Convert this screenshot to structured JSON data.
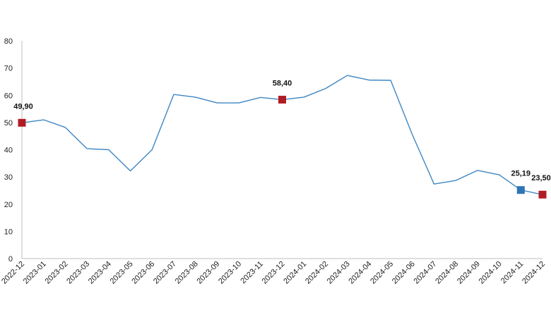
{
  "chart_data": {
    "type": "line",
    "title": "",
    "xlabel": "",
    "ylabel": "",
    "ylim": [
      0,
      80
    ],
    "yticks": [
      0,
      10,
      20,
      30,
      40,
      50,
      60,
      70,
      80
    ],
    "grid": false,
    "legend": "none",
    "categories": [
      "2022-12",
      "2023-01",
      "2023-02",
      "2023-03",
      "2023-04",
      "2023-05",
      "2023-06",
      "2023-07",
      "2023-08",
      "2023-09",
      "2023-10",
      "2023-11",
      "2023-12",
      "2024-01",
      "2024-02",
      "2024-03",
      "2024-04",
      "2024-05",
      "2024-06",
      "2024-07",
      "2024-08",
      "2024-09",
      "2024-10",
      "2024-11",
      "2024-12"
    ],
    "series": [
      {
        "values": [
          49.9,
          51.0,
          48.2,
          40.4,
          40.0,
          32.2,
          40.0,
          60.3,
          59.3,
          57.2,
          57.2,
          59.2,
          58.4,
          59.3,
          62.5,
          67.3,
          65.6,
          65.5,
          45.5,
          27.4,
          28.7,
          32.4,
          30.8,
          25.19,
          23.5
        ],
        "color": "#3e86c3"
      }
    ],
    "highlighted_points": [
      {
        "category": "2022-12",
        "value": 49.9,
        "label": "49,90",
        "color": "#b01c24"
      },
      {
        "category": "2023-12",
        "value": 58.4,
        "label": "58,40",
        "color": "#b01c24"
      },
      {
        "category": "2024-11",
        "value": 25.19,
        "label": "25,19",
        "color": "#2e75b6"
      },
      {
        "category": "2024-12",
        "value": 23.5,
        "label": "23,50",
        "color": "#b01c24"
      }
    ],
    "axis_color": "#bfbfbf"
  }
}
